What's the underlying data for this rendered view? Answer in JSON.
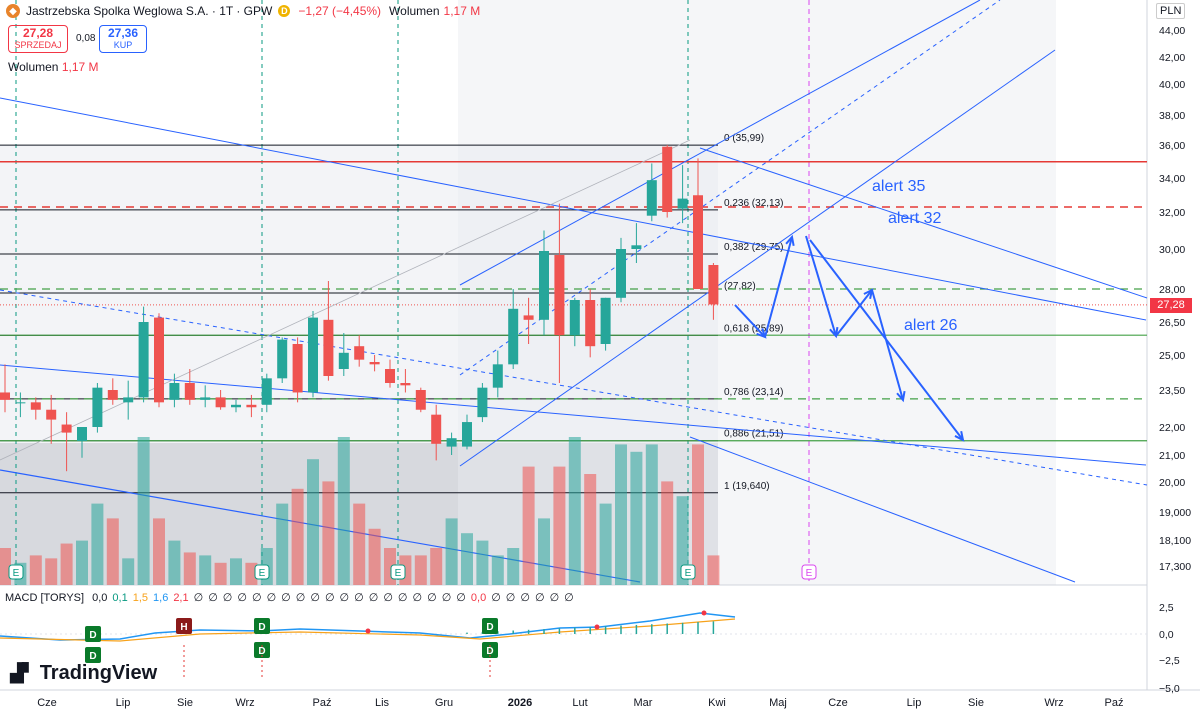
{
  "header": {
    "symbol": "Jastrzebska Spolka Weglowa S.A. · 1T · GPW",
    "badge": "D",
    "change": "−1,27 (−4,45%)",
    "volume_label": "Wolumen",
    "volume_value": "1,17 M"
  },
  "trade": {
    "sell_price": "27,28",
    "sell_label": "SPRZEDAJ",
    "spread": "0,08",
    "buy_price": "27,36",
    "buy_label": "KUP"
  },
  "volume_pane": {
    "label": "Wolumen",
    "value": "1,17 M"
  },
  "macd_pane": {
    "label": "MACD [TORYS]",
    "values": [
      "0,0",
      "0,1",
      "1,5",
      "1,6",
      "2,1"
    ],
    "value_colors": [
      "#131722",
      "#089981",
      "#f7a21b",
      "#2196f3",
      "#f23645"
    ],
    "empty_symbol": "∅",
    "empty_count_before": 19,
    "mid_value": "0,0",
    "empty_count_after": 6
  },
  "currency": "PLN",
  "last_price": "27,28",
  "brand": "TradingView",
  "colors": {
    "up": "#26a69a",
    "down": "#ef5350",
    "trend": "#2962ff",
    "resistance": "#e53935",
    "support": "#43a047",
    "event": "#d946ef"
  },
  "chart_data": {
    "type": "candlestick",
    "y_axis": {
      "ticks": [
        "44,00",
        "42,00",
        "40,00",
        "38,00",
        "36,00",
        "34,00",
        "32,00",
        "30,00",
        "28,00",
        "26,50",
        "25,00",
        "23,50",
        "22,00",
        "21,00",
        "20,00",
        "19,000",
        "18,100",
        "17,300"
      ]
    },
    "x_axis": {
      "labels": [
        "Cze",
        "Lip",
        "Sie",
        "Wrz",
        "Paź",
        "Lis",
        "Gru",
        "2026",
        "Lut",
        "Mar",
        "Kwi",
        "Maj",
        "Cze",
        "Lip",
        "Sie",
        "Wrz",
        "Paź"
      ]
    },
    "candles_weekly": [
      {
        "o": 23.4,
        "h": 24.6,
        "l": 22.6,
        "c": 23.1
      },
      {
        "o": 23.0,
        "h": 23.4,
        "l": 22.4,
        "c": 23.0
      },
      {
        "o": 23.0,
        "h": 23.2,
        "l": 22.3,
        "c": 22.7
      },
      {
        "o": 22.7,
        "h": 23.3,
        "l": 21.4,
        "c": 22.3
      },
      {
        "o": 22.1,
        "h": 22.6,
        "l": 20.4,
        "c": 21.8
      },
      {
        "o": 21.5,
        "h": 21.9,
        "l": 20.9,
        "c": 22.0
      },
      {
        "o": 22.0,
        "h": 23.8,
        "l": 21.8,
        "c": 23.6
      },
      {
        "o": 23.5,
        "h": 24.0,
        "l": 22.9,
        "c": 23.1
      },
      {
        "o": 23.0,
        "h": 23.9,
        "l": 22.3,
        "c": 23.2
      },
      {
        "o": 23.2,
        "h": 27.2,
        "l": 23.0,
        "c": 26.5
      },
      {
        "o": 26.7,
        "h": 26.9,
        "l": 22.8,
        "c": 23.0
      },
      {
        "o": 23.1,
        "h": 24.2,
        "l": 22.8,
        "c": 23.8
      },
      {
        "o": 23.8,
        "h": 24.4,
        "l": 22.9,
        "c": 23.1
      },
      {
        "o": 23.1,
        "h": 23.7,
        "l": 22.8,
        "c": 23.2
      },
      {
        "o": 23.2,
        "h": 23.5,
        "l": 22.7,
        "c": 22.8
      },
      {
        "o": 22.8,
        "h": 23.1,
        "l": 22.6,
        "c": 22.9
      },
      {
        "o": 22.9,
        "h": 23.3,
        "l": 22.4,
        "c": 22.8
      },
      {
        "o": 22.9,
        "h": 24.2,
        "l": 22.6,
        "c": 24.0
      },
      {
        "o": 24.0,
        "h": 25.8,
        "l": 23.8,
        "c": 25.7
      },
      {
        "o": 25.5,
        "h": 25.8,
        "l": 23.0,
        "c": 23.4
      },
      {
        "o": 23.4,
        "h": 27.0,
        "l": 23.2,
        "c": 26.7
      },
      {
        "o": 26.6,
        "h": 28.4,
        "l": 23.9,
        "c": 24.1
      },
      {
        "o": 24.4,
        "h": 26.0,
        "l": 24.1,
        "c": 25.1
      },
      {
        "o": 25.4,
        "h": 25.9,
        "l": 24.5,
        "c": 24.8
      },
      {
        "o": 24.7,
        "h": 25.0,
        "l": 24.3,
        "c": 24.6
      },
      {
        "o": 24.4,
        "h": 24.8,
        "l": 23.6,
        "c": 23.8
      },
      {
        "o": 23.8,
        "h": 24.4,
        "l": 23.4,
        "c": 23.7
      },
      {
        "o": 23.5,
        "h": 23.6,
        "l": 22.6,
        "c": 22.7
      },
      {
        "o": 22.5,
        "h": 22.9,
        "l": 20.8,
        "c": 21.4
      },
      {
        "o": 21.3,
        "h": 21.8,
        "l": 21.0,
        "c": 21.6
      },
      {
        "o": 21.3,
        "h": 22.5,
        "l": 21.2,
        "c": 22.2
      },
      {
        "o": 22.4,
        "h": 23.8,
        "l": 22.2,
        "c": 23.6
      },
      {
        "o": 23.6,
        "h": 25.2,
        "l": 23.2,
        "c": 24.6
      },
      {
        "o": 24.6,
        "h": 28.0,
        "l": 24.4,
        "c": 27.1
      },
      {
        "o": 26.8,
        "h": 27.6,
        "l": 25.5,
        "c": 26.6
      },
      {
        "o": 26.6,
        "h": 31.0,
        "l": 25.9,
        "c": 29.9
      },
      {
        "o": 29.7,
        "h": 32.5,
        "l": 23.8,
        "c": 25.9
      },
      {
        "o": 25.9,
        "h": 27.6,
        "l": 25.4,
        "c": 27.5
      },
      {
        "o": 27.5,
        "h": 28.0,
        "l": 24.9,
        "c": 25.4
      },
      {
        "o": 25.5,
        "h": 27.6,
        "l": 25.2,
        "c": 27.6
      },
      {
        "o": 27.6,
        "h": 30.6,
        "l": 27.4,
        "c": 30.0
      },
      {
        "o": 30.0,
        "h": 31.4,
        "l": 29.3,
        "c": 30.2
      },
      {
        "o": 31.8,
        "h": 34.9,
        "l": 31.5,
        "c": 33.9
      },
      {
        "o": 35.9,
        "h": 36.0,
        "l": 31.7,
        "c": 32.0
      },
      {
        "o": 32.2,
        "h": 34.8,
        "l": 31.4,
        "c": 32.8
      },
      {
        "o": 33.0,
        "h": 35.2,
        "l": 30.6,
        "c": 28.0
      },
      {
        "o": 29.2,
        "h": 29.3,
        "l": 26.6,
        "c": 27.3
      }
    ],
    "volume_rel": [
      0.25,
      0.15,
      0.2,
      0.18,
      0.28,
      0.3,
      0.55,
      0.45,
      0.18,
      1.0,
      0.45,
      0.3,
      0.22,
      0.2,
      0.15,
      0.18,
      0.15,
      0.25,
      0.55,
      0.65,
      0.85,
      0.7,
      1.0,
      0.55,
      0.38,
      0.25,
      0.2,
      0.2,
      0.25,
      0.45,
      0.35,
      0.3,
      0.2,
      0.25,
      0.8,
      0.45,
      0.8,
      1.0,
      0.75,
      0.55,
      0.95,
      0.9,
      0.95,
      0.7,
      0.6,
      0.95,
      0.2
    ],
    "fib": [
      {
        "ratio": "0",
        "price": 35.99,
        "label": "0 (35,99)"
      },
      {
        "ratio": "0.236",
        "price": 32.13,
        "label": "0,236 (32,13)"
      },
      {
        "ratio": "0.382",
        "price": 29.75,
        "label": "0,382 (29,75)"
      },
      {
        "ratio": "0.5",
        "price": 27.82,
        "label": "(27,82)"
      },
      {
        "ratio": "0.618",
        "price": 25.89,
        "label": "0,618 (25,89)"
      },
      {
        "ratio": "0.786",
        "price": 23.14,
        "label": "0,786 (23,14)"
      },
      {
        "ratio": "0.886",
        "price": 21.51,
        "label": "0,886 (21,51)"
      },
      {
        "ratio": "1",
        "price": 19.64,
        "label": "1 (19,640)"
      }
    ],
    "alerts": [
      {
        "text": "alert 35",
        "price": 35.0
      },
      {
        "text": "alert 32",
        "price": 32.3
      },
      {
        "text": "alert 26",
        "price": 26.5
      }
    ],
    "event_markers": [
      "E",
      "E",
      "E",
      "E",
      "E"
    ],
    "macd_markers": [
      "D",
      "D",
      "H",
      "D",
      "D",
      "D",
      "D"
    ]
  }
}
